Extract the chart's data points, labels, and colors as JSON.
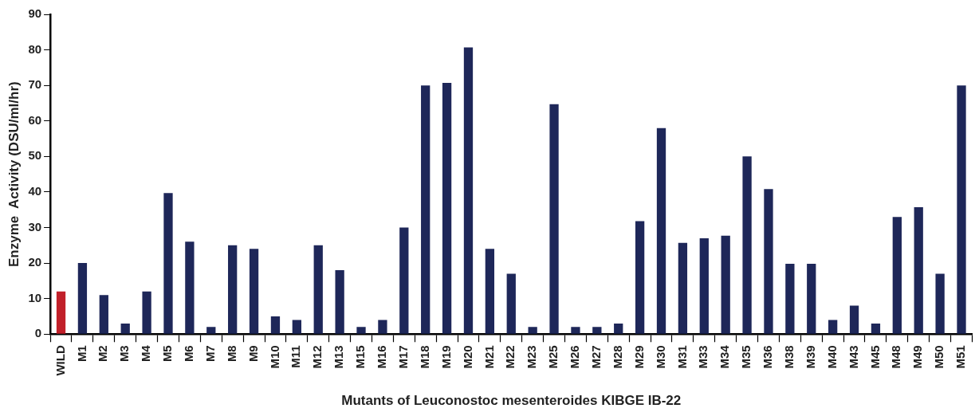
{
  "chart_data": {
    "type": "bar",
    "xlabel": "Mutants of Leuconostoc mesenteroides KIBGE IB-22",
    "ylabel": "Enzyme  Activity (DSU/ml/hr)",
    "categories": [
      "WILD",
      "M1",
      "M2",
      "M3",
      "M4",
      "M5",
      "M6",
      "M7",
      "M8",
      "M9",
      "M10",
      "M11",
      "M12",
      "M13",
      "M15",
      "M16",
      "M17",
      "M18",
      "M19",
      "M20",
      "M21",
      "M22",
      "M23",
      "M25",
      "M26",
      "M27",
      "M28",
      "M29",
      "M30",
      "M31",
      "M33",
      "M34",
      "M35",
      "M36",
      "M38",
      "M39",
      "M40",
      "M43",
      "M45",
      "M48",
      "M49",
      "M50",
      "M51"
    ],
    "values": [
      12,
      20,
      11,
      3,
      12,
      39.7,
      26,
      2,
      25,
      24,
      5,
      4,
      25,
      18,
      2,
      4,
      30,
      70,
      70.7,
      80.7,
      24,
      17,
      2,
      64.7,
      2,
      2,
      3,
      31.8,
      58,
      25.7,
      27,
      27.7,
      50,
      40.8,
      19.8,
      19.8,
      4,
      8,
      3,
      33,
      35.7,
      17,
      70
    ],
    "colors": [
      "#c1202a",
      "#1e2759",
      "#1e2759",
      "#1e2759",
      "#1e2759",
      "#1e2759",
      "#1e2759",
      "#1e2759",
      "#1e2759",
      "#1e2759",
      "#1e2759",
      "#1e2759",
      "#1e2759",
      "#1e2759",
      "#1e2759",
      "#1e2759",
      "#1e2759",
      "#1e2759",
      "#1e2759",
      "#1e2759",
      "#1e2759",
      "#1e2759",
      "#1e2759",
      "#1e2759",
      "#1e2759",
      "#1e2759",
      "#1e2759",
      "#1e2759",
      "#1e2759",
      "#1e2759",
      "#1e2759",
      "#1e2759",
      "#1e2759",
      "#1e2759",
      "#1e2759",
      "#1e2759",
      "#1e2759",
      "#1e2759",
      "#1e2759",
      "#1e2759",
      "#1e2759",
      "#1e2759",
      "#1e2759"
    ],
    "ylim": [
      0,
      90
    ],
    "yticks": [
      0,
      10,
      20,
      30,
      40,
      50,
      60,
      70,
      80,
      90
    ],
    "grid": false,
    "legend": false
  }
}
